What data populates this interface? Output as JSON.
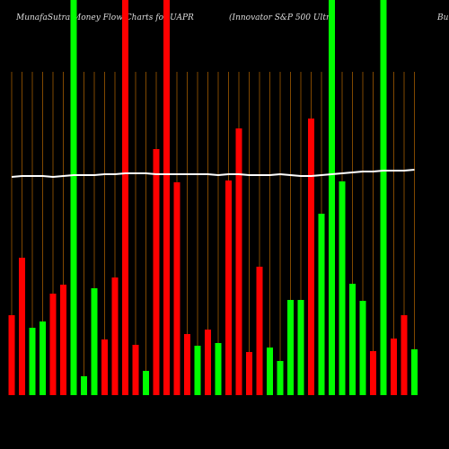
{
  "chart_data": {
    "type": "bar",
    "title": "MunafaSutra  Money Flow  Charts for UAPR",
    "subtitle": "(Innovator S&P 500  Ultra",
    "title_right": "Bu",
    "ylim": [
      0,
      440
    ],
    "series": [
      {
        "name": "money-flow",
        "colors": [
          "#ff0000",
          "#ff0000",
          "#00ff00",
          "#00ff00",
          "#ff0000",
          "#ff0000",
          "#00ff00",
          "#00ff00",
          "#00ff00",
          "#ff0000",
          "#ff0000",
          "#ff0000",
          "#ff0000",
          "#00ff00",
          "#ff0000",
          "#ff0000",
          "#ff0000",
          "#ff0000",
          "#00ff00",
          "#ff0000",
          "#00ff00",
          "#ff0000",
          "#ff0000",
          "#ff0000",
          "#ff0000",
          "#00ff00",
          "#00ff00",
          "#00ff00",
          "#00ff00",
          "#ff0000",
          "#00ff00",
          "#00ff00",
          "#00ff00",
          "#00ff00",
          "#00ff00",
          "#ff0000",
          "#00ff00",
          "#ff0000",
          "#ff0000",
          "#00ff00"
        ],
        "values": [
          89,
          153,
          75,
          82,
          113,
          123,
          440,
          21,
          119,
          62,
          131,
          440,
          56,
          27,
          274,
          440,
          237,
          68,
          55,
          73,
          58,
          239,
          297,
          48,
          143,
          53,
          38,
          106,
          106,
          308,
          202,
          440,
          238,
          124,
          105,
          49,
          440,
          63,
          89,
          51
        ]
      },
      {
        "name": "flow-line",
        "color": "#ffffff",
        "values": [
          243,
          244,
          244,
          244,
          243,
          244,
          245,
          245,
          245,
          246,
          246,
          247,
          247,
          247,
          246,
          246,
          246,
          246,
          246,
          246,
          245,
          246,
          246,
          245,
          245,
          245,
          246,
          245,
          244,
          244,
          245,
          246,
          247,
          248,
          249,
          249,
          250,
          250,
          250,
          251
        ]
      }
    ]
  }
}
